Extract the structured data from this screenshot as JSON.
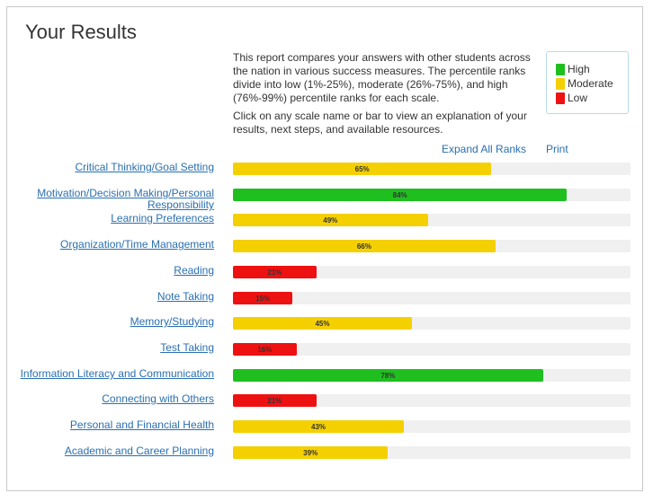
{
  "header": {
    "title": "Your Results"
  },
  "intro": {
    "paragraph1": "This report compares your answers with other students across the nation in various success measures. The percentile ranks divide into low (1%-25%), moderate (26%-75%), and high (76%-99%) percentile ranks for each scale.",
    "paragraph2": "Click on any scale name or bar to view an explanation of your results, next steps, and available resources."
  },
  "legend": [
    {
      "label": "High",
      "color": "#1fbf1f"
    },
    {
      "label": "Moderate",
      "color": "#f5d000"
    },
    {
      "label": "Low",
      "color": "#ee1111"
    }
  ],
  "actions": {
    "expand_all": "Expand All Ranks",
    "print": "Print"
  },
  "scales": [
    {
      "name": "Critical Thinking/Goal Setting",
      "percent": 65,
      "label": "65%",
      "level": "Moderate"
    },
    {
      "name": "Motivation/Decision Making/Personal Responsibility",
      "percent": 84,
      "label": "84%",
      "level": "High"
    },
    {
      "name": "Learning Preferences",
      "percent": 49,
      "label": "49%",
      "level": "Moderate"
    },
    {
      "name": "Organization/Time Management",
      "percent": 66,
      "label": "66%",
      "level": "Moderate"
    },
    {
      "name": "Reading",
      "percent": 21,
      "label": "21%",
      "level": "Low"
    },
    {
      "name": "Note Taking",
      "percent": 15,
      "label": "15%",
      "level": "Low"
    },
    {
      "name": "Memory/Studying",
      "percent": 45,
      "label": "45%",
      "level": "Moderate"
    },
    {
      "name": "Test Taking",
      "percent": 16,
      "label": "16%",
      "level": "Low"
    },
    {
      "name": "Information Literacy and Communication",
      "percent": 78,
      "label": "78%",
      "level": "High"
    },
    {
      "name": "Connecting with Others",
      "percent": 21,
      "label": "21%",
      "level": "Low"
    },
    {
      "name": "Personal and Financial Health",
      "percent": 43,
      "label": "43%",
      "level": "Moderate"
    },
    {
      "name": "Academic and Career Planning",
      "percent": 39,
      "label": "39%",
      "level": "Moderate"
    }
  ]
}
